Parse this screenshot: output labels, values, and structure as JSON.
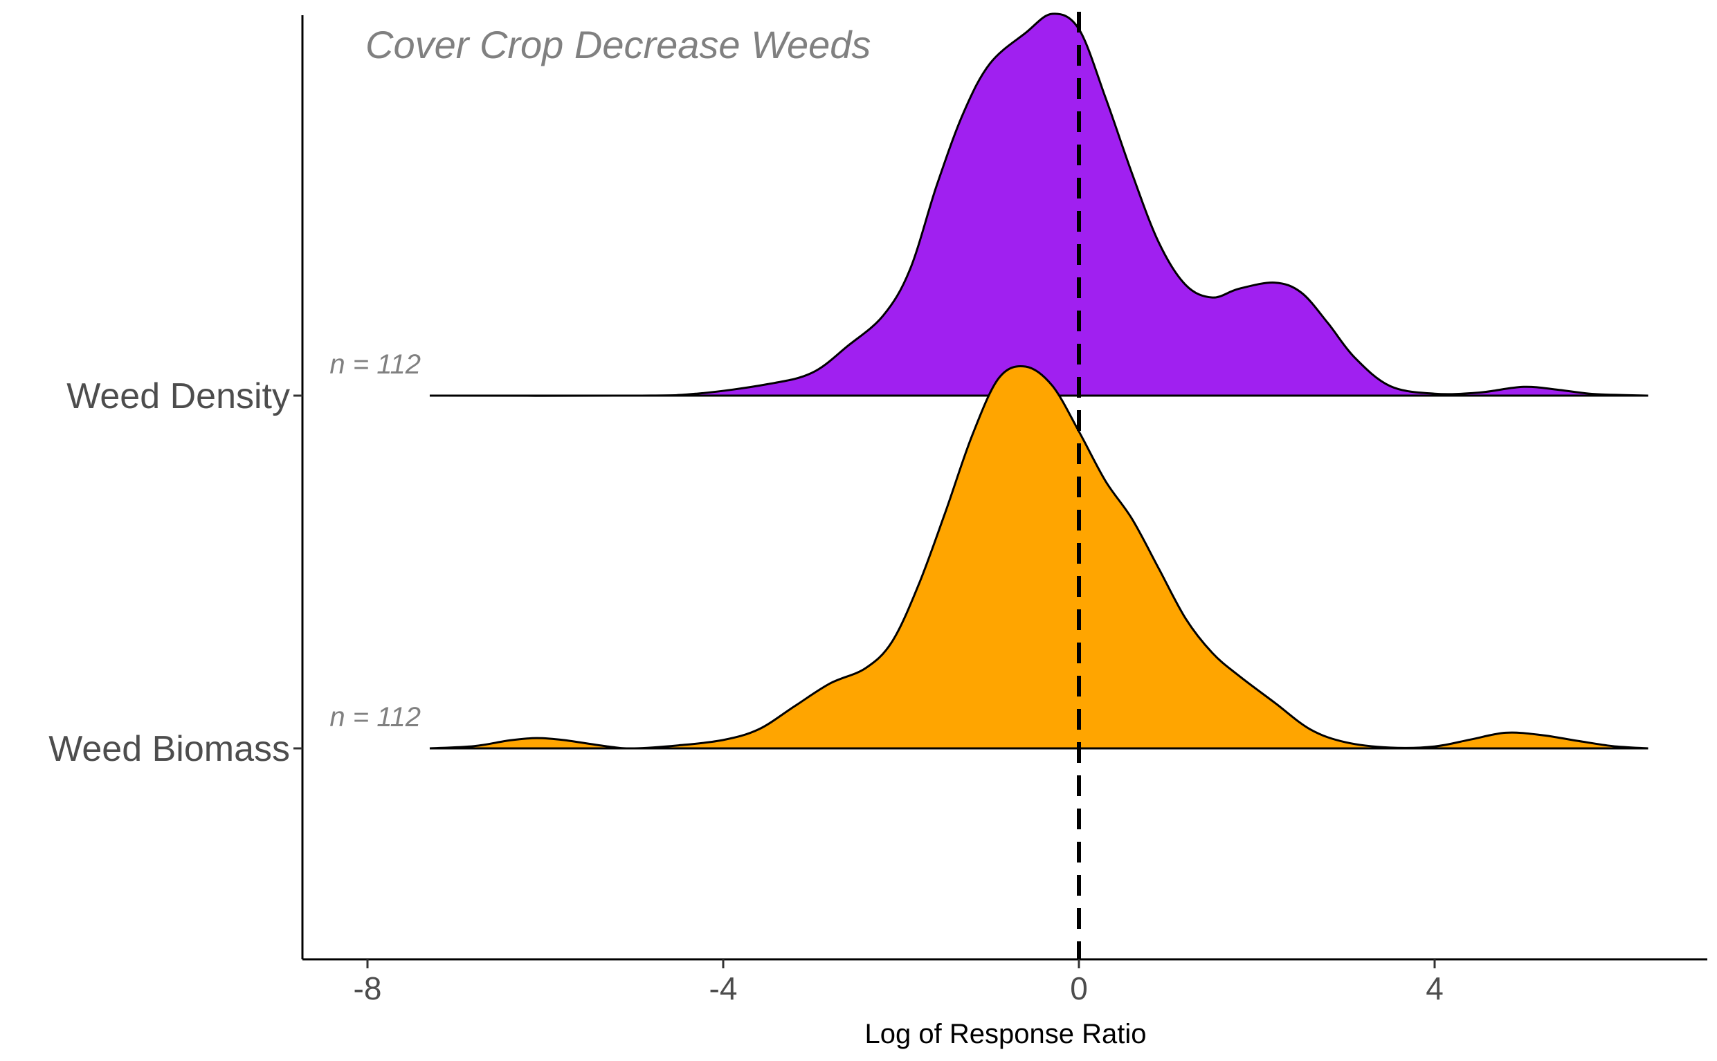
{
  "chart_data": {
    "type": "ridgeline",
    "title": "",
    "xlabel": "Log of Response Ratio",
    "ylabel": "",
    "xlim": [
      -8.7,
      7.0
    ],
    "xticks": [
      -8,
      -4,
      0,
      4
    ],
    "xtick_labels": [
      "-8",
      "-4",
      "0",
      "4"
    ],
    "reference_line": {
      "x": 0,
      "style": "dashed",
      "color": "#000000"
    },
    "annotation": "Cover Crop Decrease Weeds",
    "grid": false,
    "legend": "none",
    "series": [
      {
        "name": "Weed Density",
        "n_label": "n = 112",
        "color": "#A020F0",
        "density": [
          [
            -7.3,
            0.0
          ],
          [
            -5.0,
            0.0
          ],
          [
            -4.3,
            0.005
          ],
          [
            -3.5,
            0.03
          ],
          [
            -3.0,
            0.06
          ],
          [
            -2.6,
            0.13
          ],
          [
            -2.2,
            0.21
          ],
          [
            -1.9,
            0.33
          ],
          [
            -1.6,
            0.55
          ],
          [
            -1.3,
            0.74
          ],
          [
            -1.0,
            0.87
          ],
          [
            -0.6,
            0.95
          ],
          [
            -0.3,
            1.0
          ],
          [
            0.0,
            0.96
          ],
          [
            0.3,
            0.78
          ],
          [
            0.6,
            0.58
          ],
          [
            0.9,
            0.4
          ],
          [
            1.2,
            0.29
          ],
          [
            1.5,
            0.257
          ],
          [
            1.8,
            0.28
          ],
          [
            2.2,
            0.296
          ],
          [
            2.5,
            0.27
          ],
          [
            2.8,
            0.19
          ],
          [
            3.1,
            0.1
          ],
          [
            3.5,
            0.025
          ],
          [
            4.0,
            0.005
          ],
          [
            4.5,
            0.008
          ],
          [
            5.0,
            0.023
          ],
          [
            5.4,
            0.015
          ],
          [
            5.8,
            0.004
          ],
          [
            6.4,
            0.0
          ]
        ]
      },
      {
        "name": "Weed Biomass",
        "n_label": "n = 112",
        "color": "#FFA500",
        "density": [
          [
            -7.3,
            0.0
          ],
          [
            -6.8,
            0.006
          ],
          [
            -6.4,
            0.021
          ],
          [
            -6.1,
            0.027
          ],
          [
            -5.8,
            0.022
          ],
          [
            -5.3,
            0.005
          ],
          [
            -5.0,
            0.0
          ],
          [
            -4.5,
            0.008
          ],
          [
            -4.0,
            0.022
          ],
          [
            -3.6,
            0.05
          ],
          [
            -3.2,
            0.11
          ],
          [
            -2.8,
            0.17
          ],
          [
            -2.4,
            0.21
          ],
          [
            -2.1,
            0.28
          ],
          [
            -1.8,
            0.43
          ],
          [
            -1.5,
            0.62
          ],
          [
            -1.2,
            0.82
          ],
          [
            -0.9,
            0.97
          ],
          [
            -0.6,
            1.0
          ],
          [
            -0.3,
            0.95
          ],
          [
            0.0,
            0.83
          ],
          [
            0.3,
            0.7
          ],
          [
            0.6,
            0.6
          ],
          [
            0.9,
            0.47
          ],
          [
            1.2,
            0.34
          ],
          [
            1.5,
            0.25
          ],
          [
            1.8,
            0.19
          ],
          [
            2.2,
            0.12
          ],
          [
            2.6,
            0.05
          ],
          [
            3.0,
            0.016
          ],
          [
            3.5,
            0.002
          ],
          [
            4.0,
            0.005
          ],
          [
            4.4,
            0.023
          ],
          [
            4.8,
            0.041
          ],
          [
            5.2,
            0.035
          ],
          [
            5.6,
            0.02
          ],
          [
            6.0,
            0.006
          ],
          [
            6.4,
            0.0
          ]
        ]
      }
    ]
  }
}
